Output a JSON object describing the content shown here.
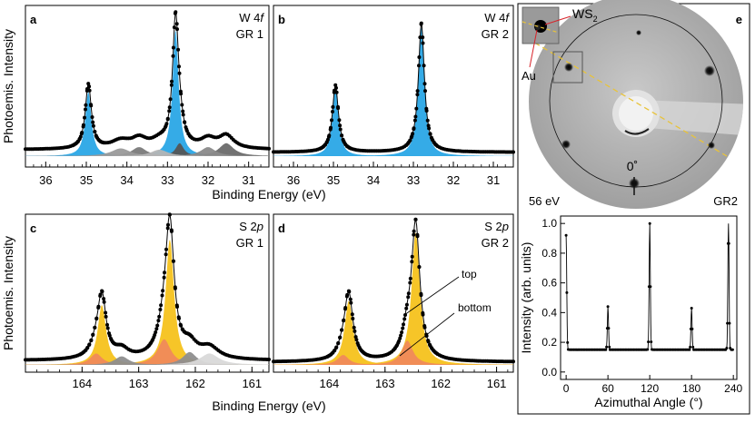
{
  "figure": {
    "shared_xlabel_top": "Binding Energy (eV)",
    "shared_xlabel_bottom": "Binding Energy (eV)",
    "shared_ylabel_top": "Photoemis. Intensity",
    "shared_ylabel_bottom": "Photoemis. Intensity"
  },
  "chart_data": [
    {
      "id": "a",
      "type": "line",
      "panel_letter": "a",
      "title_line1": "W 4",
      "title_italic": "f",
      "title_line2": "GR 1",
      "xlim": [
        36.5,
        30.5
      ],
      "xticks": [
        36,
        35,
        34,
        33,
        32,
        31
      ],
      "tick_labels": [
        "36",
        "35",
        "34",
        "33",
        "32",
        "31"
      ],
      "xlabel": "Binding Energy (eV)",
      "ylabel": "Photoemis. Intensity",
      "background": 0.05,
      "peaks": [
        {
          "name": "W4f5/2 main",
          "center": 34.95,
          "width": 0.09,
          "amp": 0.5,
          "color": "#2aa7e6"
        },
        {
          "name": "W4f7/2 main",
          "center": 32.8,
          "width": 0.09,
          "amp": 0.98,
          "color": "#2aa7e6"
        },
        {
          "name": "comp1",
          "center": 34.15,
          "width": 0.28,
          "amp": 0.06,
          "color": "#9a9a9a"
        },
        {
          "name": "comp2",
          "center": 33.7,
          "width": 0.22,
          "amp": 0.07,
          "color": "#7a7a7a"
        },
        {
          "name": "comp3",
          "center": 33.2,
          "width": 0.25,
          "amp": 0.05,
          "color": "#b5b5b5"
        },
        {
          "name": "comp4",
          "center": 32.7,
          "width": 0.12,
          "amp": 0.1,
          "color": "#555555"
        },
        {
          "name": "comp5",
          "center": 32.0,
          "width": 0.22,
          "amp": 0.07,
          "color": "#8a8a8a"
        },
        {
          "name": "comp6",
          "center": 31.55,
          "width": 0.22,
          "amp": 0.1,
          "color": "#6a6a6a"
        }
      ]
    },
    {
      "id": "b",
      "type": "line",
      "panel_letter": "b",
      "title_line1": "W 4",
      "title_italic": "f",
      "title_line2": "GR 2",
      "xlim": [
        36.5,
        30.5
      ],
      "xticks": [
        36,
        35,
        34,
        33,
        32,
        31
      ],
      "tick_labels": [
        "36",
        "35",
        "34",
        "33",
        "32",
        "31"
      ],
      "xlabel": "Binding Energy (eV)",
      "background": 0.03,
      "peaks": [
        {
          "name": "W4f5/2",
          "center": 34.95,
          "width": 0.09,
          "amp": 0.52,
          "color": "#2aa7e6"
        },
        {
          "name": "W4f7/2",
          "center": 32.8,
          "width": 0.09,
          "amp": 1.0,
          "color": "#2aa7e6"
        }
      ]
    },
    {
      "id": "c",
      "type": "line",
      "panel_letter": "c",
      "title_line1": "S 2",
      "title_italic": "p",
      "title_line2": "GR 1",
      "xlim": [
        165.0,
        160.7
      ],
      "xticks": [
        164,
        163,
        162,
        161
      ],
      "tick_labels": [
        "164",
        "163",
        "162",
        "161"
      ],
      "xlabel": "Binding Energy (eV)",
      "ylabel": "Photoemis. Intensity",
      "background": 0.03,
      "peaks": [
        {
          "name": "top 2p1/2",
          "center": 163.65,
          "width": 0.09,
          "amp": 0.42,
          "color": "#f6c21c"
        },
        {
          "name": "top 2p3/2",
          "center": 162.45,
          "width": 0.09,
          "amp": 0.88,
          "color": "#f6c21c"
        },
        {
          "name": "bottom 2p1/2",
          "center": 163.75,
          "width": 0.13,
          "amp": 0.08,
          "color": "#f08a5a"
        },
        {
          "name": "bottom 2p3/2",
          "center": 162.55,
          "width": 0.14,
          "amp": 0.18,
          "color": "#f08a5a"
        },
        {
          "name": "grey1",
          "center": 163.3,
          "width": 0.15,
          "amp": 0.06,
          "color": "#8e8e8e"
        },
        {
          "name": "grey2",
          "center": 162.1,
          "width": 0.15,
          "amp": 0.09,
          "color": "#8e8e8e"
        },
        {
          "name": "light1",
          "center": 161.75,
          "width": 0.2,
          "amp": 0.08,
          "color": "#d9d9d9"
        }
      ]
    },
    {
      "id": "d",
      "type": "line",
      "panel_letter": "d",
      "title_line1": "S 2",
      "title_italic": "p",
      "title_line2": "GR 2",
      "xlim": [
        165.0,
        160.7
      ],
      "xticks": [
        164,
        163,
        162,
        161
      ],
      "tick_labels": [
        "164",
        "163",
        "162",
        "161"
      ],
      "xlabel": "Binding Energy (eV)",
      "background": 0.02,
      "annotations": [
        "top",
        "bottom"
      ],
      "peaks": [
        {
          "name": "top 2p1/2",
          "center": 163.65,
          "width": 0.09,
          "amp": 0.45,
          "color": "#f6c21c"
        },
        {
          "name": "top 2p3/2",
          "center": 162.45,
          "width": 0.09,
          "amp": 0.93,
          "color": "#f6c21c"
        },
        {
          "name": "bottom 2p1/2",
          "center": 163.75,
          "width": 0.12,
          "amp": 0.07,
          "color": "#f08a5a"
        },
        {
          "name": "bottom 2p3/2",
          "center": 162.6,
          "width": 0.12,
          "amp": 0.17,
          "color": "#f08a5a"
        }
      ]
    },
    {
      "id": "e-profile",
      "type": "line",
      "xlabel": "Azimuthal Angle (°)",
      "ylabel": "Intensity (arb. units)",
      "xlim": [
        -8,
        245
      ],
      "ylim": [
        -0.05,
        1.05
      ],
      "xticks": [
        0,
        60,
        120,
        180,
        240
      ],
      "yticks": [
        0.0,
        0.2,
        0.4,
        0.6,
        0.8,
        1.0
      ],
      "tick_labels_x": [
        "0",
        "60",
        "120",
        "180",
        "240"
      ],
      "tick_labels_y": [
        "0.0",
        "0.2",
        "0.4",
        "0.6",
        "0.8",
        "1.0"
      ],
      "baseline": 0.15,
      "peaks": [
        {
          "angle": 0,
          "value": 0.92
        },
        {
          "angle": 60,
          "value": 0.44
        },
        {
          "angle": 120,
          "value": 1.0
        },
        {
          "angle": 180,
          "value": 0.43
        },
        {
          "angle": 233,
          "value": 1.0
        }
      ]
    }
  ],
  "leed": {
    "panel_letter": "e",
    "energy_label": "56 eV",
    "sample_label": "GR2",
    "angle_label": "0˚",
    "label_ws2": "WS",
    "label_ws2_sub": "2",
    "label_au": "Au"
  }
}
